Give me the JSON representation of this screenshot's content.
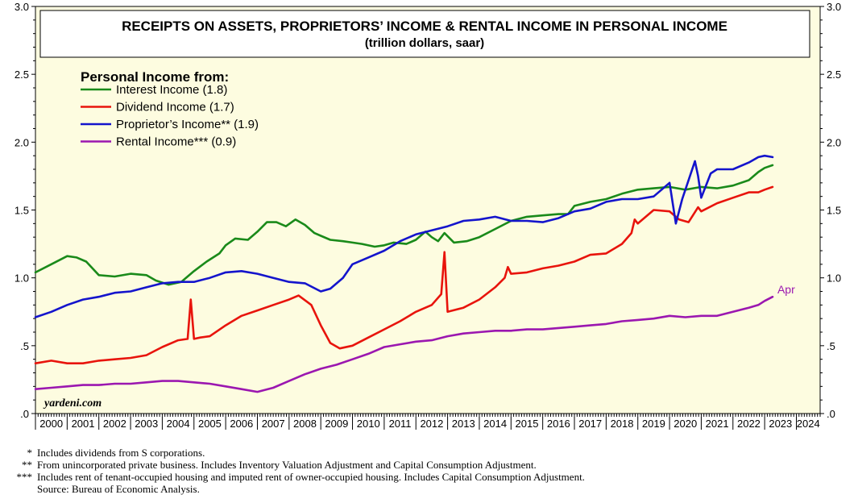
{
  "chart_data": {
    "type": "line",
    "title": "RECEIPTS ON ASSETS, PROPRIETORS’ INCOME & RENTAL INCOME IN PERSONAL INCOME",
    "subtitle": "(trillion dollars, saar)",
    "legend_title": "Personal Income from:",
    "legend_position": "top-left",
    "ylim": [
      0,
      3.0
    ],
    "xlim": [
      2000,
      2024.75
    ],
    "y_ticks": [
      ".0",
      ".5",
      "1.0",
      "1.5",
      "2.0",
      "2.5",
      "3.0"
    ],
    "x_tick_labels": [
      "2000",
      "2001",
      "2002",
      "2003",
      "2004",
      "2005",
      "2006",
      "2007",
      "2008",
      "2009",
      "2010",
      "2011",
      "2012",
      "2013",
      "2014",
      "2015",
      "2016",
      "2017",
      "2018",
      "2019",
      "2020",
      "2021",
      "2022",
      "2023",
      "2024"
    ],
    "watermark": "yardeni.com",
    "end_annotation": "Apr",
    "series": [
      {
        "name": "Interest Income (1.8)",
        "color": "#1a8a1a",
        "x": [
          2000.0,
          2000.5,
          2001.0,
          2001.3,
          2001.6,
          2002.0,
          2002.5,
          2003.0,
          2003.5,
          2003.8,
          2004.2,
          2004.6,
          2005.0,
          2005.4,
          2005.8,
          2006.0,
          2006.3,
          2006.7,
          2007.0,
          2007.3,
          2007.6,
          2007.9,
          2008.2,
          2008.5,
          2008.8,
          2009.0,
          2009.3,
          2009.7,
          2010.0,
          2010.3,
          2010.7,
          2011.0,
          2011.3,
          2011.7,
          2012.0,
          2012.3,
          2012.5,
          2012.7,
          2012.9,
          2013.2,
          2013.6,
          2014.0,
          2014.5,
          2015.0,
          2015.5,
          2016.0,
          2016.5,
          2016.8,
          2017.0,
          2017.5,
          2018.0,
          2018.5,
          2019.0,
          2019.5,
          2020.0,
          2020.5,
          2021.0,
          2021.5,
          2022.0,
          2022.5,
          2022.8,
          2023.0,
          2023.25
        ],
        "y": [
          1.04,
          1.1,
          1.16,
          1.15,
          1.12,
          1.02,
          1.01,
          1.03,
          1.02,
          0.98,
          0.95,
          0.97,
          1.05,
          1.12,
          1.18,
          1.24,
          1.29,
          1.28,
          1.34,
          1.41,
          1.41,
          1.38,
          1.43,
          1.39,
          1.33,
          1.31,
          1.28,
          1.27,
          1.26,
          1.25,
          1.23,
          1.24,
          1.26,
          1.25,
          1.28,
          1.34,
          1.3,
          1.27,
          1.33,
          1.26,
          1.27,
          1.3,
          1.36,
          1.42,
          1.45,
          1.46,
          1.47,
          1.47,
          1.53,
          1.56,
          1.58,
          1.62,
          1.65,
          1.66,
          1.67,
          1.65,
          1.67,
          1.66,
          1.68,
          1.72,
          1.78,
          1.81,
          1.83
        ]
      },
      {
        "name": "Dividend Income (1.7)",
        "color": "#e8140c",
        "x": [
          2000.0,
          2000.5,
          2001.0,
          2001.5,
          2002.0,
          2002.5,
          2003.0,
          2003.5,
          2004.0,
          2004.5,
          2004.8,
          2004.9,
          2005.0,
          2005.2,
          2005.5,
          2006.0,
          2006.5,
          2007.0,
          2007.5,
          2008.0,
          2008.3,
          2008.7,
          2009.0,
          2009.3,
          2009.6,
          2010.0,
          2010.5,
          2011.0,
          2011.5,
          2012.0,
          2012.5,
          2012.8,
          2012.9,
          2013.0,
          2013.5,
          2014.0,
          2014.5,
          2014.8,
          2014.9,
          2015.0,
          2015.5,
          2016.0,
          2016.5,
          2017.0,
          2017.5,
          2018.0,
          2018.5,
          2018.8,
          2018.9,
          2019.0,
          2019.5,
          2020.0,
          2020.3,
          2020.6,
          2020.9,
          2021.0,
          2021.5,
          2022.0,
          2022.5,
          2022.8,
          2023.0,
          2023.25
        ],
        "y": [
          0.37,
          0.39,
          0.37,
          0.37,
          0.39,
          0.4,
          0.41,
          0.43,
          0.49,
          0.54,
          0.55,
          0.84,
          0.55,
          0.56,
          0.57,
          0.65,
          0.72,
          0.76,
          0.8,
          0.84,
          0.87,
          0.8,
          0.65,
          0.52,
          0.48,
          0.5,
          0.56,
          0.62,
          0.68,
          0.75,
          0.8,
          0.88,
          1.19,
          0.75,
          0.78,
          0.84,
          0.93,
          1.0,
          1.08,
          1.03,
          1.04,
          1.07,
          1.09,
          1.12,
          1.17,
          1.18,
          1.25,
          1.33,
          1.43,
          1.4,
          1.5,
          1.49,
          1.43,
          1.41,
          1.52,
          1.49,
          1.55,
          1.59,
          1.63,
          1.63,
          1.65,
          1.67
        ]
      },
      {
        "name": "Proprietor’s Income** (1.9)",
        "color": "#1414cc",
        "x": [
          2000.0,
          2000.5,
          2001.0,
          2001.5,
          2002.0,
          2002.5,
          2003.0,
          2003.5,
          2004.0,
          2004.5,
          2005.0,
          2005.5,
          2006.0,
          2006.5,
          2007.0,
          2007.5,
          2008.0,
          2008.5,
          2009.0,
          2009.3,
          2009.7,
          2010.0,
          2010.5,
          2011.0,
          2011.5,
          2012.0,
          2012.5,
          2013.0,
          2013.5,
          2014.0,
          2014.5,
          2015.0,
          2015.5,
          2016.0,
          2016.5,
          2017.0,
          2017.5,
          2018.0,
          2018.5,
          2019.0,
          2019.5,
          2020.0,
          2020.2,
          2020.4,
          2020.8,
          2020.9,
          2021.0,
          2021.3,
          2021.5,
          2022.0,
          2022.5,
          2022.8,
          2023.0,
          2023.25
        ],
        "y": [
          0.71,
          0.75,
          0.8,
          0.84,
          0.86,
          0.89,
          0.9,
          0.93,
          0.96,
          0.97,
          0.97,
          1.0,
          1.04,
          1.05,
          1.03,
          1.0,
          0.97,
          0.96,
          0.9,
          0.92,
          1.0,
          1.1,
          1.15,
          1.2,
          1.27,
          1.32,
          1.35,
          1.38,
          1.42,
          1.43,
          1.45,
          1.42,
          1.42,
          1.41,
          1.44,
          1.49,
          1.51,
          1.56,
          1.58,
          1.58,
          1.6,
          1.7,
          1.4,
          1.58,
          1.86,
          1.75,
          1.59,
          1.77,
          1.8,
          1.8,
          1.85,
          1.89,
          1.9,
          1.89
        ]
      },
      {
        "name": "Rental Income*** (0.9)",
        "color": "#9b17b0",
        "x": [
          2000.0,
          2000.5,
          2001.0,
          2001.5,
          2002.0,
          2002.5,
          2003.0,
          2003.5,
          2004.0,
          2004.5,
          2005.0,
          2005.5,
          2006.0,
          2006.5,
          2007.0,
          2007.5,
          2008.0,
          2008.5,
          2009.0,
          2009.5,
          2010.0,
          2010.5,
          2011.0,
          2011.5,
          2012.0,
          2012.5,
          2013.0,
          2013.5,
          2014.0,
          2014.5,
          2015.0,
          2015.5,
          2016.0,
          2016.5,
          2017.0,
          2017.5,
          2018.0,
          2018.5,
          2019.0,
          2019.5,
          2020.0,
          2020.5,
          2021.0,
          2021.5,
          2022.0,
          2022.5,
          2022.8,
          2023.0,
          2023.25
        ],
        "y": [
          0.18,
          0.19,
          0.2,
          0.21,
          0.21,
          0.22,
          0.22,
          0.23,
          0.24,
          0.24,
          0.23,
          0.22,
          0.2,
          0.18,
          0.16,
          0.19,
          0.24,
          0.29,
          0.33,
          0.36,
          0.4,
          0.44,
          0.49,
          0.51,
          0.53,
          0.54,
          0.57,
          0.59,
          0.6,
          0.61,
          0.61,
          0.62,
          0.62,
          0.63,
          0.64,
          0.65,
          0.66,
          0.68,
          0.69,
          0.7,
          0.72,
          0.71,
          0.72,
          0.72,
          0.75,
          0.78,
          0.8,
          0.83,
          0.86
        ]
      }
    ]
  },
  "footnotes": [
    {
      "mark": "*",
      "text": "Includes dividends from S corporations."
    },
    {
      "mark": "**",
      "text": "From unincorporated private business. Includes Inventory Valuation Adjustment and Capital Consumption Adjustment."
    },
    {
      "mark": "***",
      "text": "Includes rent of tenant-occupied housing and imputed rent of owner-occupied housing. Includes Capital Consumption Adjustment."
    },
    {
      "mark": "",
      "text": "Source: Bureau of Economic Analysis."
    }
  ]
}
